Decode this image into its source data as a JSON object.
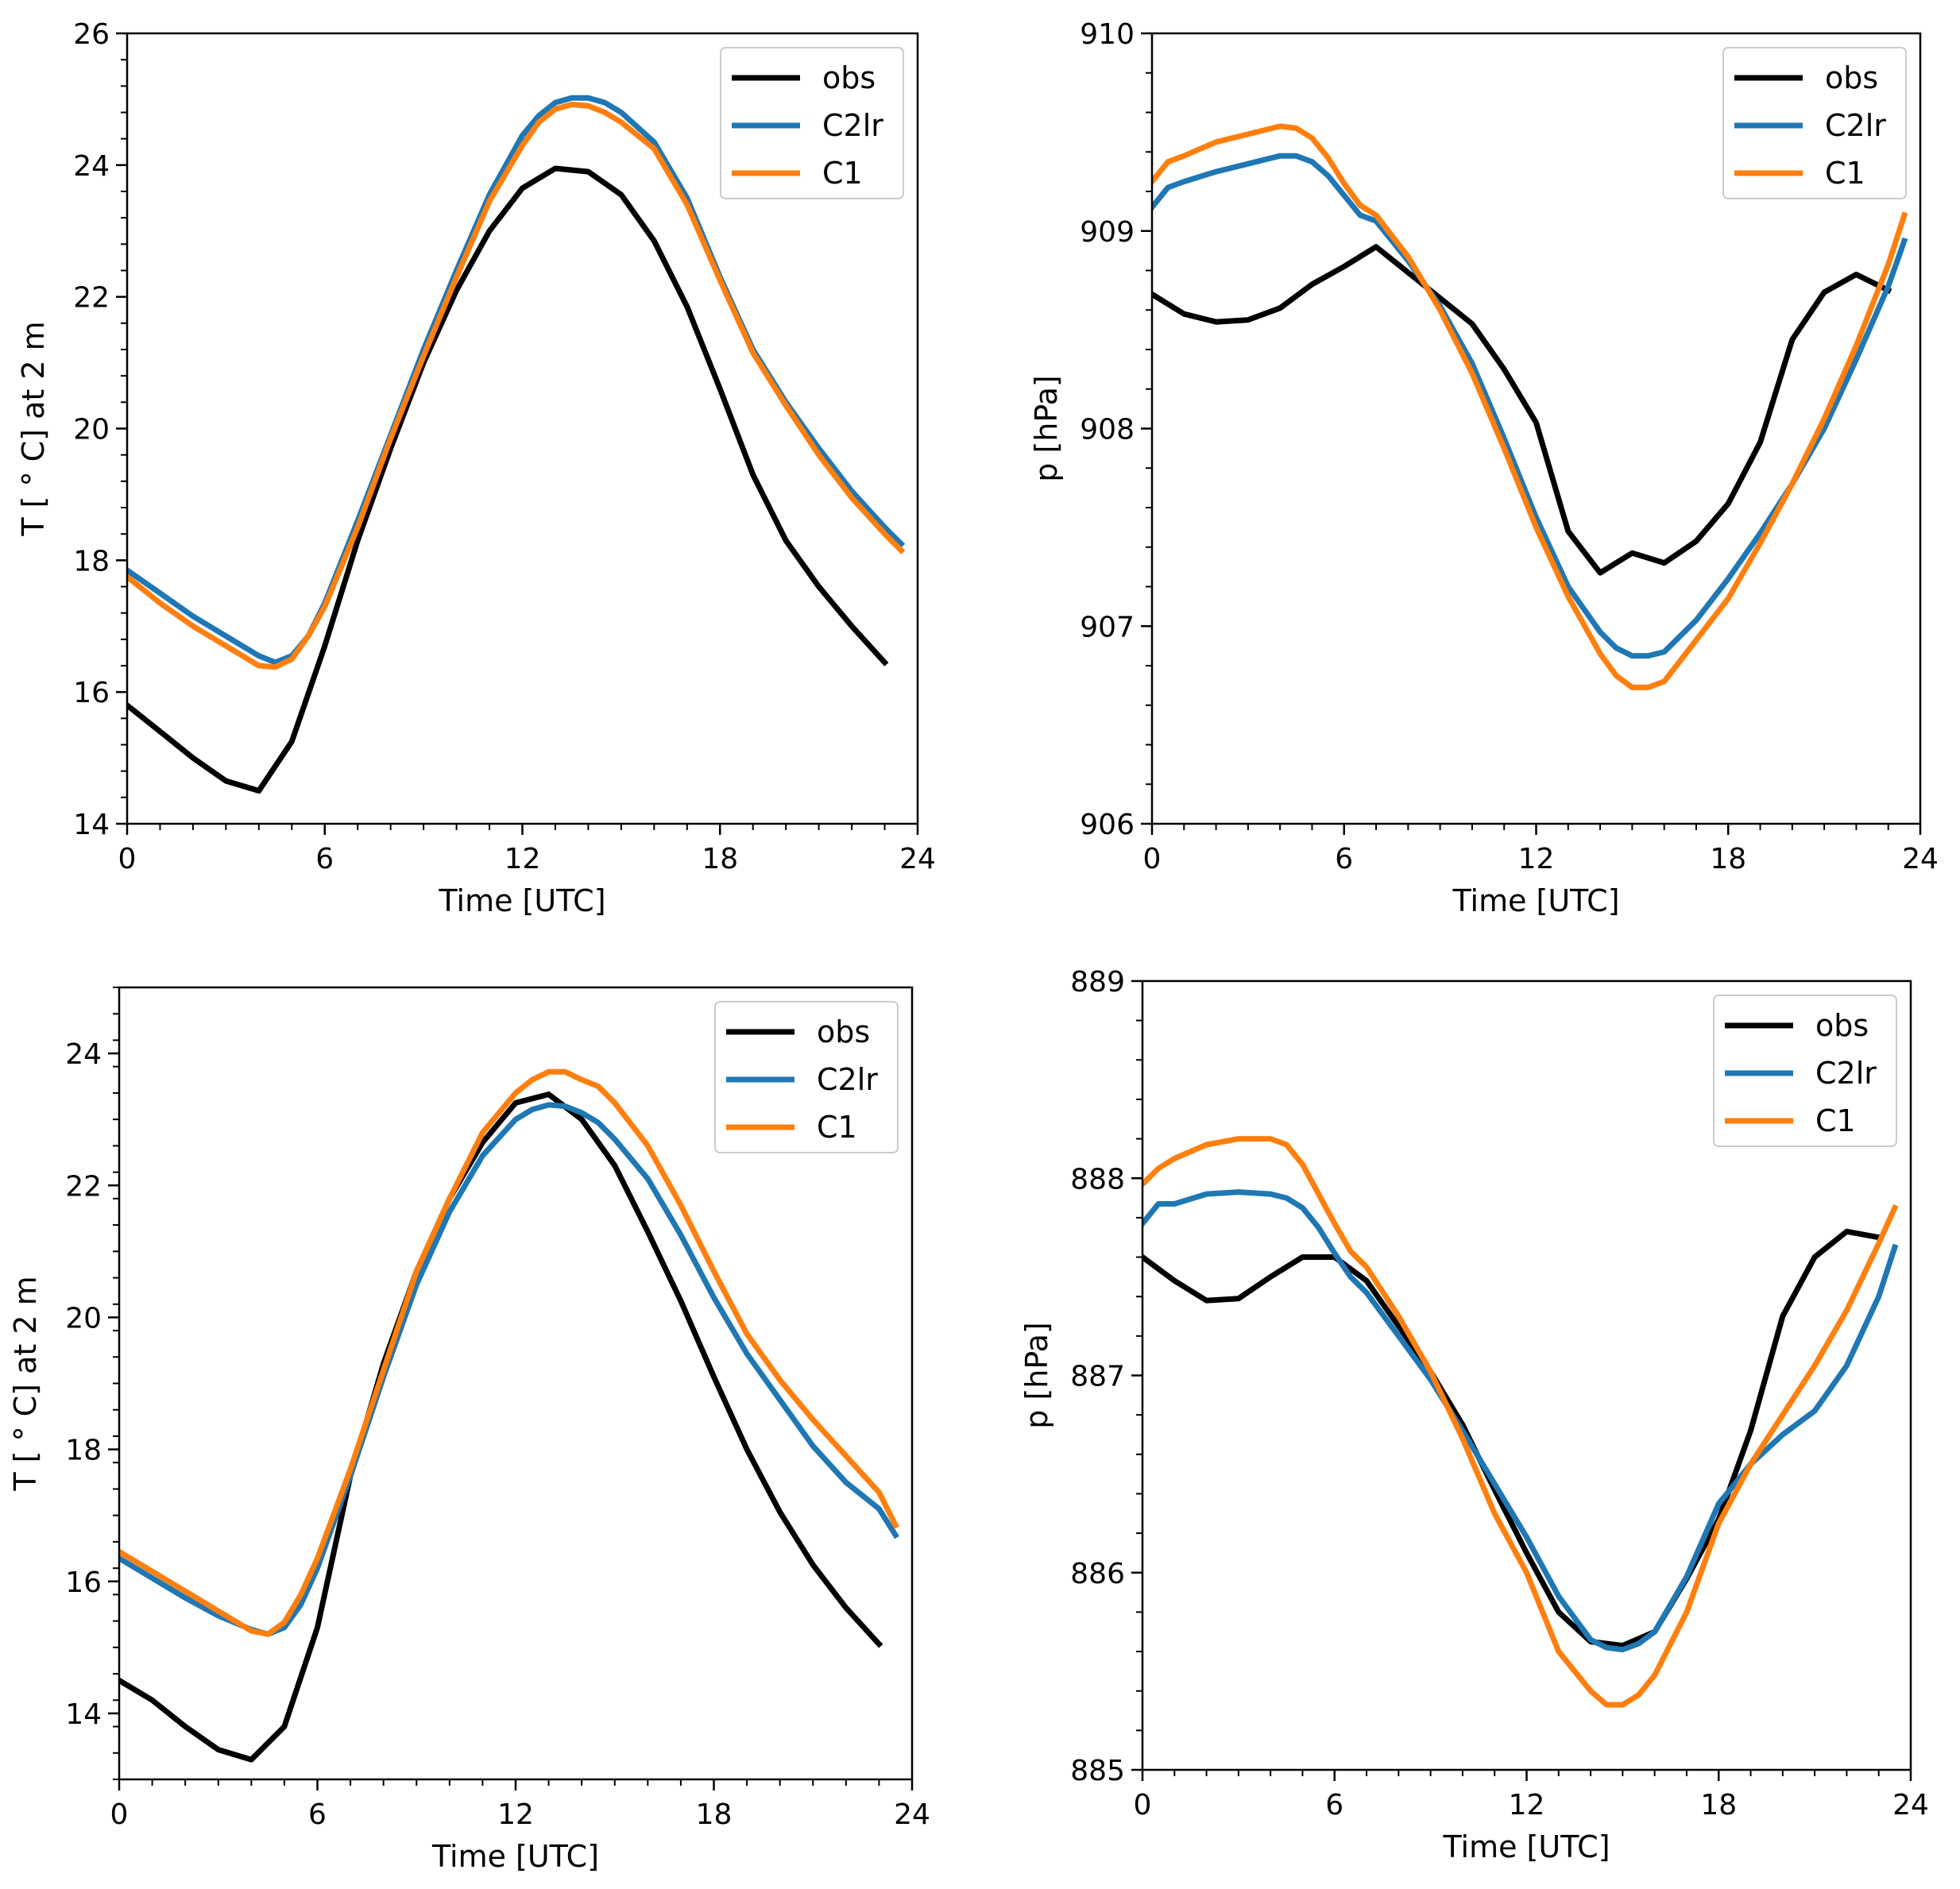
{
  "colors": {
    "obs": "#000000",
    "C2lr": "#1f77b4",
    "C1": "#ff7f0e"
  },
  "chart_data": [
    {
      "type": "line",
      "xlabel": "Time [UTC]",
      "ylabel": "T [$^\\circ$C] at 2 m",
      "ylabel_display": "T [ ° C] at 2 m",
      "xlim": [
        0,
        24
      ],
      "ylim": [
        14,
        26
      ],
      "xticks": [
        0,
        6,
        12,
        18,
        24
      ],
      "yticks": [
        14,
        16,
        18,
        20,
        22,
        24,
        26
      ],
      "legend_position": "top-right",
      "series": [
        {
          "name": "obs",
          "color": "#000000",
          "x": [
            0,
            1,
            2,
            3,
            4,
            5,
            6,
            7,
            8,
            9,
            10,
            11,
            12,
            13,
            14,
            15,
            16,
            17,
            18,
            19,
            20,
            21,
            22,
            23
          ],
          "y": [
            15.8,
            15.4,
            15.0,
            14.65,
            14.5,
            15.25,
            16.7,
            18.3,
            19.7,
            21.0,
            22.1,
            23.0,
            23.65,
            23.95,
            23.9,
            23.55,
            22.85,
            21.85,
            20.6,
            19.3,
            18.3,
            17.6,
            17.0,
            16.45
          ]
        },
        {
          "name": "C2lr",
          "color": "#1f77b4",
          "x": [
            0,
            1,
            2,
            3,
            4,
            4.5,
            5,
            5.5,
            6,
            7,
            8,
            9,
            10,
            11,
            12,
            12.5,
            13,
            13.5,
            14,
            14.5,
            15,
            16,
            17,
            18,
            19,
            20,
            21,
            22,
            23,
            23.5
          ],
          "y": [
            17.85,
            17.5,
            17.15,
            16.85,
            16.55,
            16.45,
            16.55,
            16.85,
            17.35,
            18.6,
            19.9,
            21.2,
            22.4,
            23.55,
            24.45,
            24.75,
            24.95,
            25.02,
            25.02,
            24.95,
            24.8,
            24.35,
            23.5,
            22.3,
            21.2,
            20.4,
            19.7,
            19.05,
            18.5,
            18.25
          ]
        },
        {
          "name": "C1",
          "color": "#ff7f0e",
          "x": [
            0,
            1,
            2,
            3,
            4,
            4.5,
            5,
            5.5,
            6,
            7,
            8,
            9,
            10,
            11,
            12,
            12.5,
            13,
            13.5,
            14,
            14.5,
            15,
            16,
            17,
            18,
            19,
            20,
            21,
            22,
            23,
            23.5
          ],
          "y": [
            17.75,
            17.35,
            17.0,
            16.7,
            16.4,
            16.38,
            16.5,
            16.85,
            17.3,
            18.5,
            19.85,
            21.1,
            22.3,
            23.45,
            24.3,
            24.65,
            24.85,
            24.92,
            24.9,
            24.8,
            24.65,
            24.25,
            23.4,
            22.25,
            21.15,
            20.35,
            19.6,
            18.95,
            18.4,
            18.15
          ]
        }
      ]
    },
    {
      "type": "line",
      "xlabel": "Time [UTC]",
      "ylabel": "p [hPa]",
      "xlim": [
        0,
        24
      ],
      "ylim": [
        906,
        910
      ],
      "xticks": [
        0,
        6,
        12,
        18,
        24
      ],
      "yticks": [
        906,
        907,
        908,
        909,
        910
      ],
      "legend_position": "top-right",
      "series": [
        {
          "name": "obs",
          "color": "#000000",
          "x": [
            0,
            1,
            2,
            3,
            4,
            5,
            6,
            7,
            8,
            9,
            10,
            11,
            12,
            13,
            14,
            15,
            16,
            17,
            18,
            19,
            20,
            21,
            22,
            23
          ],
          "y": [
            908.68,
            908.58,
            908.54,
            908.55,
            908.61,
            908.73,
            908.82,
            908.92,
            908.79,
            908.66,
            908.53,
            908.3,
            908.03,
            907.48,
            907.27,
            907.37,
            907.32,
            907.43,
            907.62,
            907.93,
            908.45,
            908.69,
            908.78,
            908.7
          ]
        },
        {
          "name": "C2lr",
          "color": "#1f77b4",
          "x": [
            0,
            0.5,
            1,
            2,
            3,
            4,
            4.5,
            5,
            5.5,
            6,
            6.5,
            7,
            8,
            9,
            10,
            11,
            12,
            13,
            14,
            14.5,
            15,
            15.5,
            16,
            17,
            18,
            19,
            20,
            21,
            22,
            23,
            23.5
          ],
          "y": [
            909.12,
            909.22,
            909.25,
            909.3,
            909.34,
            909.38,
            909.38,
            909.35,
            909.28,
            909.18,
            909.08,
            909.05,
            908.85,
            908.62,
            908.33,
            907.95,
            907.55,
            907.2,
            906.97,
            906.89,
            906.85,
            906.85,
            906.87,
            907.03,
            907.24,
            907.47,
            907.72,
            908.0,
            908.35,
            908.72,
            908.95
          ]
        },
        {
          "name": "C1",
          "color": "#ff7f0e",
          "x": [
            0,
            0.5,
            1,
            2,
            3,
            4,
            4.5,
            5,
            5.5,
            6,
            6.5,
            7,
            8,
            9,
            10,
            11,
            12,
            13,
            14,
            14.5,
            15,
            15.5,
            16,
            17,
            18,
            19,
            20,
            21,
            22,
            23,
            23.5
          ],
          "y": [
            909.25,
            909.35,
            909.38,
            909.45,
            909.49,
            909.53,
            909.52,
            909.47,
            909.37,
            909.24,
            909.13,
            909.08,
            908.87,
            908.6,
            908.28,
            907.9,
            907.5,
            907.15,
            906.86,
            906.75,
            906.69,
            906.69,
            906.72,
            906.93,
            907.14,
            907.42,
            907.72,
            908.05,
            908.42,
            908.83,
            909.08
          ]
        }
      ]
    },
    {
      "type": "line",
      "xlabel": "Time [UTC]",
      "ylabel": "T [$^\\circ$C] at 2 m",
      "ylabel_display": "T [ ° C] at 2 m",
      "xlim": [
        0,
        24
      ],
      "ylim": [
        13,
        25
      ],
      "xticks": [
        0,
        6,
        12,
        18,
        24
      ],
      "yticks": [
        14,
        16,
        18,
        20,
        22,
        24
      ],
      "legend_position": "top-right",
      "series": [
        {
          "name": "obs",
          "color": "#000000",
          "x": [
            0,
            1,
            2,
            3,
            4,
            5,
            6,
            7,
            8,
            9,
            10,
            11,
            12,
            13,
            14,
            15,
            16,
            17,
            18,
            19,
            20,
            21,
            22,
            23
          ],
          "y": [
            14.5,
            14.2,
            13.8,
            13.45,
            13.3,
            13.8,
            15.3,
            17.6,
            19.3,
            20.7,
            21.8,
            22.65,
            23.25,
            23.38,
            23.0,
            22.3,
            21.3,
            20.25,
            19.1,
            18.0,
            17.05,
            16.25,
            15.6,
            15.05
          ]
        },
        {
          "name": "C2lr",
          "color": "#1f77b4",
          "x": [
            0,
            1,
            2,
            3,
            4,
            4.5,
            5,
            5.5,
            6,
            7,
            8,
            9,
            10,
            11,
            12,
            12.5,
            13,
            13.5,
            14,
            14.5,
            15,
            16,
            17,
            18,
            19,
            20,
            21,
            22,
            23,
            23.5
          ],
          "y": [
            16.35,
            16.05,
            15.75,
            15.48,
            15.27,
            15.2,
            15.3,
            15.65,
            16.2,
            17.6,
            19.1,
            20.5,
            21.6,
            22.45,
            23.0,
            23.15,
            23.22,
            23.2,
            23.1,
            22.95,
            22.7,
            22.1,
            21.25,
            20.3,
            19.45,
            18.75,
            18.05,
            17.5,
            17.1,
            16.7
          ]
        },
        {
          "name": "C1",
          "color": "#ff7f0e",
          "x": [
            0,
            1,
            2,
            3,
            4,
            4.5,
            5,
            5.5,
            6,
            7,
            8,
            9,
            10,
            11,
            12,
            12.5,
            13,
            13.5,
            14,
            14.5,
            15,
            16,
            17,
            18,
            19,
            20,
            21,
            22,
            23,
            23.5
          ],
          "y": [
            16.45,
            16.15,
            15.85,
            15.55,
            15.25,
            15.2,
            15.38,
            15.8,
            16.35,
            17.7,
            19.2,
            20.7,
            21.8,
            22.8,
            23.4,
            23.6,
            23.72,
            23.72,
            23.6,
            23.5,
            23.25,
            22.6,
            21.7,
            20.7,
            19.75,
            19.05,
            18.45,
            17.9,
            17.35,
            16.85
          ]
        }
      ]
    },
    {
      "type": "line",
      "xlabel": "Time [UTC]",
      "ylabel": "p [hPa]",
      "xlim": [
        0,
        24
      ],
      "ylim": [
        885,
        889
      ],
      "xticks": [
        0,
        6,
        12,
        18,
        24
      ],
      "yticks": [
        885,
        886,
        887,
        888,
        889
      ],
      "legend_position": "top-right",
      "series": [
        {
          "name": "obs",
          "color": "#000000",
          "x": [
            0,
            1,
            2,
            3,
            4,
            5,
            6,
            7,
            8,
            9,
            10,
            11,
            12,
            13,
            14,
            15,
            16,
            17,
            18,
            19,
            20,
            21,
            22,
            23
          ],
          "y": [
            887.6,
            887.48,
            887.38,
            887.39,
            887.5,
            887.6,
            887.6,
            887.48,
            887.25,
            887.02,
            886.75,
            886.42,
            886.1,
            885.8,
            885.65,
            885.63,
            885.7,
            885.97,
            886.27,
            886.72,
            887.3,
            887.6,
            887.73,
            887.7
          ]
        },
        {
          "name": "C2lr",
          "color": "#1f77b4",
          "x": [
            0,
            0.5,
            1,
            2,
            3,
            4,
            4.5,
            5,
            5.5,
            6,
            6.5,
            7,
            8,
            9,
            10,
            11,
            12,
            13,
            14,
            14.5,
            15,
            15.5,
            16,
            17,
            18,
            19,
            20,
            21,
            22,
            23,
            23.5
          ],
          "y": [
            887.77,
            887.87,
            887.87,
            887.92,
            887.93,
            887.92,
            887.9,
            887.85,
            887.75,
            887.62,
            887.5,
            887.42,
            887.2,
            886.98,
            886.72,
            886.45,
            886.18,
            885.88,
            885.66,
            885.62,
            885.61,
            885.64,
            885.7,
            885.98,
            886.35,
            886.55,
            886.7,
            886.82,
            887.05,
            887.4,
            887.65
          ]
        },
        {
          "name": "C1",
          "color": "#ff7f0e",
          "x": [
            0,
            0.5,
            1,
            2,
            3,
            4,
            4.5,
            5,
            5.5,
            6,
            6.5,
            7,
            8,
            9,
            10,
            11,
            12,
            13,
            14,
            14.5,
            15,
            15.5,
            16,
            17,
            18,
            19,
            20,
            21,
            22,
            23,
            23.5
          ],
          "y": [
            887.97,
            888.05,
            888.1,
            888.17,
            888.2,
            888.2,
            888.17,
            888.07,
            887.92,
            887.77,
            887.63,
            887.55,
            887.3,
            887.02,
            886.68,
            886.3,
            886.0,
            885.6,
            885.4,
            885.33,
            885.33,
            885.38,
            885.48,
            885.8,
            886.25,
            886.55,
            886.8,
            887.05,
            887.33,
            887.67,
            887.85
          ]
        }
      ]
    }
  ]
}
